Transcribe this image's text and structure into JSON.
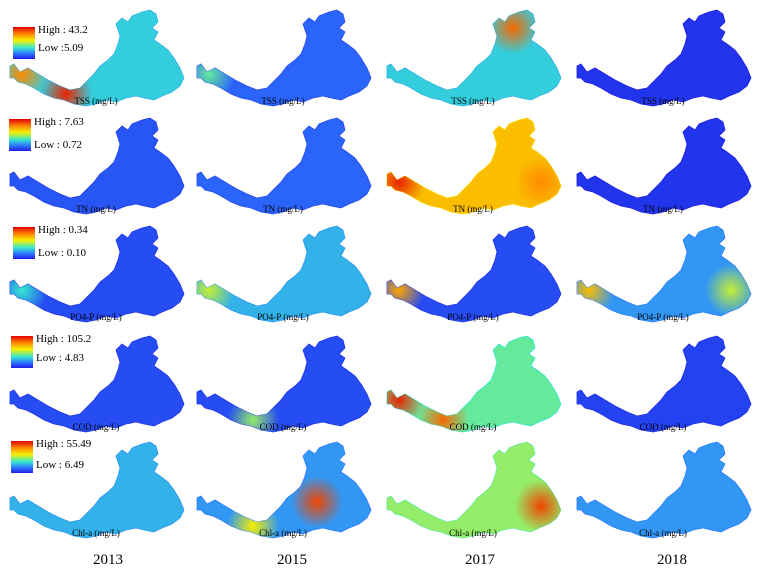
{
  "years": [
    "2013",
    "2015",
    "2017",
    "2018"
  ],
  "rows": [
    {
      "param": "TSS (mg/L)",
      "legend_high": "High : 43.2",
      "legend_low": "Low :5.09",
      "maps": [
        {
          "year": "2013",
          "level": 0.35,
          "hotspots": [
            {
              "where": "upstream river",
              "level": 0.8
            },
            {
              "where": "river bend",
              "level": 0.95
            }
          ]
        },
        {
          "year": "2015",
          "level": 0.15,
          "hotspots": [
            {
              "where": "upstream river",
              "level": 0.45
            }
          ]
        },
        {
          "year": "2017",
          "level": 0.35,
          "hotspots": [
            {
              "where": "north bay",
              "level": 0.85
            }
          ]
        },
        {
          "year": "2018",
          "level": 0.05,
          "hotspots": []
        }
      ]
    },
    {
      "param": "TN (mg/L)",
      "legend_high": "High : 7.63",
      "legend_low": "Low : 0.72",
      "maps": [
        {
          "year": "2013",
          "level": 0.12,
          "hotspots": []
        },
        {
          "year": "2015",
          "level": 0.15,
          "hotspots": []
        },
        {
          "year": "2017",
          "level": 0.7,
          "hotspots": [
            {
              "where": "upstream river",
              "level": 0.95
            },
            {
              "where": "east lobe",
              "level": 0.8
            }
          ]
        },
        {
          "year": "2018",
          "level": 0.05,
          "hotspots": []
        }
      ]
    },
    {
      "param": "PO4-P (mg/L)",
      "legend_high": "High : 0.34",
      "legend_low": "Low : 0.10",
      "maps": [
        {
          "year": "2013",
          "level": 0.1,
          "hotspots": [
            {
              "where": "upstream river",
              "level": 0.4
            }
          ]
        },
        {
          "year": "2015",
          "level": 0.3,
          "hotspots": [
            {
              "where": "upstream river",
              "level": 0.55
            }
          ]
        },
        {
          "year": "2017",
          "level": 0.1,
          "hotspots": [
            {
              "where": "upstream river",
              "level": 0.75
            }
          ]
        },
        {
          "year": "2018",
          "level": 0.25,
          "hotspots": [
            {
              "where": "upstream river",
              "level": 0.7
            },
            {
              "where": "east lobe",
              "level": 0.55
            }
          ]
        }
      ]
    },
    {
      "param": "COD (mg/L)",
      "legend_high": "High : 105.2",
      "legend_low": "Low : 4.83",
      "maps": [
        {
          "year": "2013",
          "level": 0.1,
          "hotspots": []
        },
        {
          "year": "2015",
          "level": 0.1,
          "hotspots": [
            {
              "where": "river bend",
              "level": 0.5
            }
          ]
        },
        {
          "year": "2017",
          "level": 0.45,
          "hotspots": [
            {
              "where": "upstream river",
              "level": 0.95
            },
            {
              "where": "river bend",
              "level": 0.85
            }
          ]
        },
        {
          "year": "2018",
          "level": 0.08,
          "hotspots": []
        }
      ]
    },
    {
      "param": "Chl-a (mg/L)",
      "legend_high": "High : 55.49",
      "legend_low": "Low : 6.49",
      "maps": [
        {
          "year": "2013",
          "level": 0.3,
          "hotspots": []
        },
        {
          "year": "2015",
          "level": 0.25,
          "hotspots": [
            {
              "where": "central basin",
              "level": 0.9
            },
            {
              "where": "river bend",
              "level": 0.6
            }
          ]
        },
        {
          "year": "2017",
          "level": 0.5,
          "hotspots": [
            {
              "where": "east lobe",
              "level": 0.9
            }
          ]
        },
        {
          "year": "2018",
          "level": 0.25,
          "hotspots": []
        }
      ]
    }
  ],
  "colors": {
    "high": "#e00000",
    "mid_high": "#ff8a00",
    "mid": "#f5f000",
    "mid_low": "#35e8d0",
    "low": "#1d1de6"
  }
}
